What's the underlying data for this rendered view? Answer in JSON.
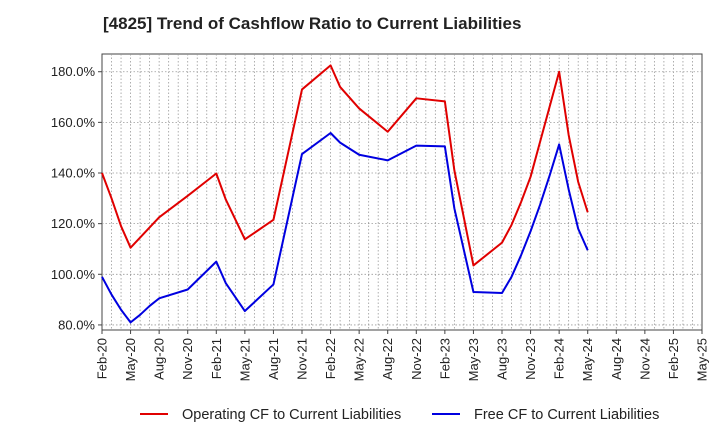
{
  "chart_data": {
    "type": "line",
    "title": "[4825]  Trend of Cashflow Ratio to Current Liabilities",
    "xlabel": "",
    "ylabel": "",
    "ylim": [
      78,
      187
    ],
    "y_ticks": [
      80,
      100,
      120,
      140,
      160,
      180
    ],
    "y_tick_labels": [
      "80.0%",
      "100.0%",
      "120.0%",
      "140.0%",
      "160.0%",
      "180.0%"
    ],
    "x_tick_labels": [
      "Feb-20",
      "May-20",
      "Aug-20",
      "Nov-20",
      "Feb-21",
      "May-21",
      "Aug-21",
      "Nov-21",
      "Feb-22",
      "May-22",
      "Aug-22",
      "Nov-22",
      "Feb-23",
      "May-23",
      "Aug-23",
      "Nov-23",
      "Feb-24",
      "May-24",
      "Aug-24",
      "Nov-24",
      "Feb-25",
      "May-25"
    ],
    "x_months_range": [
      0,
      63
    ],
    "grid": true,
    "legend_position": "bottom",
    "series": [
      {
        "name": "Operating CF to Current Liabilities",
        "color": "#e00000",
        "points": [
          {
            "x": "Feb-20",
            "y": 140.0
          },
          {
            "x": "Mar-20",
            "y": 130.0
          },
          {
            "x": "Apr-20",
            "y": 119.0
          },
          {
            "x": "May-20",
            "y": 110.5
          },
          {
            "x": "Jun-20",
            "y": 114.5
          },
          {
            "x": "Jul-20",
            "y": 118.5
          },
          {
            "x": "Aug-20",
            "y": 122.5
          },
          {
            "x": "Nov-20",
            "y": 131.0
          },
          {
            "x": "Feb-21",
            "y": 139.8
          },
          {
            "x": "Mar-21",
            "y": 129.5
          },
          {
            "x": "May-21",
            "y": 113.8
          },
          {
            "x": "Aug-21",
            "y": 121.5
          },
          {
            "x": "Nov-21",
            "y": 173.0
          },
          {
            "x": "Feb-22",
            "y": 182.5
          },
          {
            "x": "Mar-22",
            "y": 174.0
          },
          {
            "x": "May-22",
            "y": 165.5
          },
          {
            "x": "Aug-22",
            "y": 156.3
          },
          {
            "x": "Nov-22",
            "y": 169.5
          },
          {
            "x": "Feb-23",
            "y": 168.3
          },
          {
            "x": "Mar-23",
            "y": 141.0
          },
          {
            "x": "May-23",
            "y": 103.5
          },
          {
            "x": "Aug-23",
            "y": 112.5
          },
          {
            "x": "Sep-23",
            "y": 119.5
          },
          {
            "x": "Oct-23",
            "y": 128.5
          },
          {
            "x": "Nov-23",
            "y": 138.5
          },
          {
            "x": "Feb-24",
            "y": 180.0
          },
          {
            "x": "Mar-24",
            "y": 155.0
          },
          {
            "x": "Apr-24",
            "y": 136.5
          },
          {
            "x": "May-24",
            "y": 124.5
          }
        ]
      },
      {
        "name": "Free CF to Current Liabilities",
        "color": "#0000e0",
        "points": [
          {
            "x": "Feb-20",
            "y": 99.0
          },
          {
            "x": "Mar-20",
            "y": 92.0
          },
          {
            "x": "Apr-20",
            "y": 86.0
          },
          {
            "x": "May-20",
            "y": 81.0
          },
          {
            "x": "Jun-20",
            "y": 84.0
          },
          {
            "x": "Jul-20",
            "y": 87.5
          },
          {
            "x": "Aug-20",
            "y": 90.5
          },
          {
            "x": "Nov-20",
            "y": 94.0
          },
          {
            "x": "Feb-21",
            "y": 105.0
          },
          {
            "x": "Mar-21",
            "y": 96.5
          },
          {
            "x": "May-21",
            "y": 85.5
          },
          {
            "x": "Aug-21",
            "y": 96.0
          },
          {
            "x": "Nov-21",
            "y": 147.5
          },
          {
            "x": "Feb-22",
            "y": 155.8
          },
          {
            "x": "Mar-22",
            "y": 152.0
          },
          {
            "x": "May-22",
            "y": 147.2
          },
          {
            "x": "Aug-22",
            "y": 145.0
          },
          {
            "x": "Nov-22",
            "y": 150.8
          },
          {
            "x": "Feb-23",
            "y": 150.5
          },
          {
            "x": "Mar-23",
            "y": 126.0
          },
          {
            "x": "May-23",
            "y": 93.0
          },
          {
            "x": "Aug-23",
            "y": 92.6
          },
          {
            "x": "Sep-23",
            "y": 99.0
          },
          {
            "x": "Oct-23",
            "y": 107.5
          },
          {
            "x": "Nov-23",
            "y": 117.0
          },
          {
            "x": "Dec-23",
            "y": 127.5
          },
          {
            "x": "Jan-24",
            "y": 139.0
          },
          {
            "x": "Feb-24",
            "y": 151.3
          },
          {
            "x": "Mar-24",
            "y": 133.5
          },
          {
            "x": "Apr-24",
            "y": 118.0
          },
          {
            "x": "May-24",
            "y": 109.5
          }
        ]
      }
    ]
  }
}
